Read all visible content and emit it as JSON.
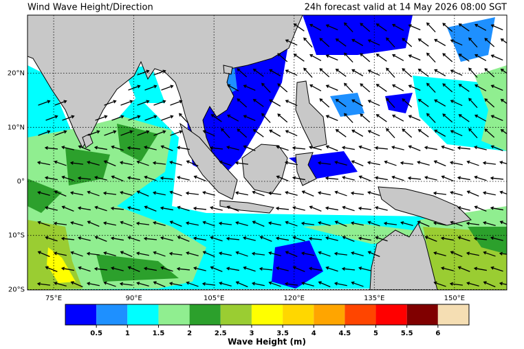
{
  "title": "Wind Wave Height/Direction",
  "subtitle": "24h forecast valid at 14 May 2026 08:00 SGT",
  "map": {
    "lon_ticks": [
      {
        "value": 75,
        "label": "75°E"
      },
      {
        "value": 90,
        "label": "90°E"
      },
      {
        "value": 105,
        "label": "105°E"
      },
      {
        "value": 120,
        "label": "120°E"
      },
      {
        "value": 135,
        "label": "135°E"
      },
      {
        "value": 150,
        "label": "150°E"
      }
    ],
    "lat_ticks": [
      {
        "value": 20,
        "label": "20°N"
      },
      {
        "value": 10,
        "label": "10°N"
      },
      {
        "value": 0,
        "label": "0°"
      },
      {
        "value": -10,
        "label": "10°S"
      },
      {
        "value": -20,
        "label": "20°S"
      }
    ]
  },
  "colorbar": {
    "title": "Wave Height (m)",
    "levels": [
      0.5,
      1,
      1.5,
      2,
      2.5,
      3,
      3.5,
      4,
      4.5,
      5,
      5.5,
      6
    ],
    "colors": [
      "#0000ff",
      "#1e90ff",
      "#00ffff",
      "#90ee90",
      "#2ca02c",
      "#9acd32",
      "#ffff00",
      "#ffd700",
      "#ffa500",
      "#ff4500",
      "#ff0000",
      "#800000",
      "#f5deb3"
    ]
  }
}
